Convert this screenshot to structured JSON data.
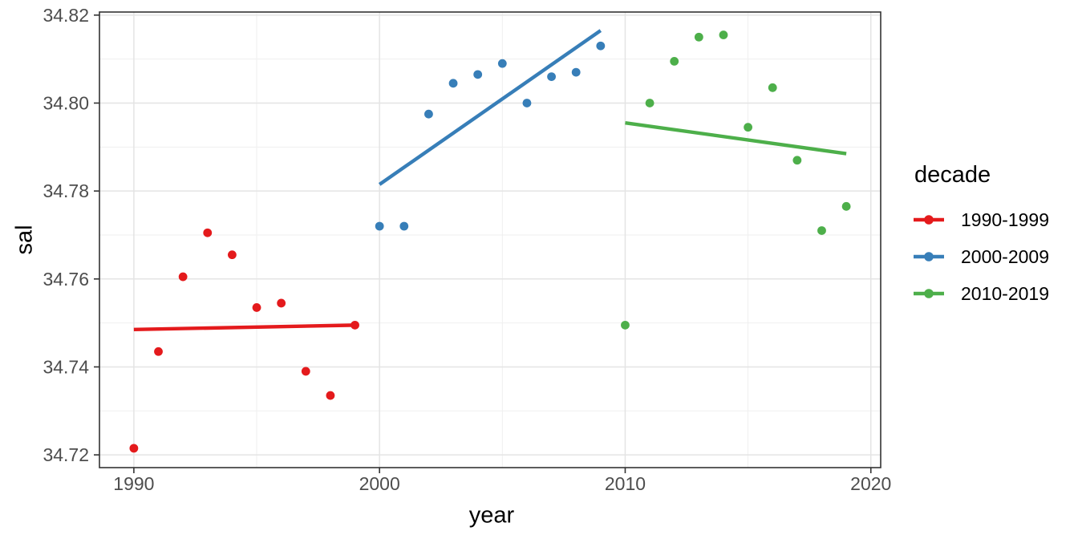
{
  "chart_data": {
    "type": "scatter",
    "title": "",
    "xlabel": "year",
    "ylabel": "sal",
    "legend_title": "decade",
    "legend_position": "right",
    "grid": true,
    "panel_theme": "white background, light gray major and minor gridlines, dark panel border (ggplot theme_bw style)",
    "xlim": [
      1988.6,
      2020.4
    ],
    "ylim": [
      34.7171,
      34.8207
    ],
    "x_ticks": [
      1990,
      2000,
      2010,
      2020
    ],
    "x_tick_labels": [
      "1990",
      "2000",
      "2010",
      "2020"
    ],
    "x_minor_ticks": [
      1995,
      2005,
      2015
    ],
    "y_ticks": [
      34.72,
      34.74,
      34.76,
      34.78,
      34.8,
      34.82
    ],
    "y_tick_labels": [
      "34.72",
      "34.74",
      "34.76",
      "34.78",
      "34.80",
      "34.82"
    ],
    "y_minor_ticks": [
      34.73,
      34.75,
      34.77,
      34.79,
      34.81
    ],
    "colors": {
      "major_grid": "#e4e4e4",
      "minor_grid": "#efefef",
      "panel_border": "#333333",
      "tick_mark": "#333333",
      "tick_label": "#4d4d4d"
    },
    "series": [
      {
        "name": "1990-1999",
        "color": "#E41A1C",
        "x": [
          1990,
          1991,
          1992,
          1993,
          1994,
          1995,
          1996,
          1997,
          1998,
          1999
        ],
        "y": [
          34.7215,
          34.7435,
          34.7605,
          34.7705,
          34.7655,
          34.7535,
          34.7545,
          34.739,
          34.7335,
          34.7495
        ],
        "trend": {
          "x1": 1990,
          "y1": 34.7485,
          "x2": 1999,
          "y2": 34.7495
        }
      },
      {
        "name": "2000-2009",
        "color": "#377EB8",
        "x": [
          2000,
          2001,
          2002,
          2003,
          2004,
          2005,
          2006,
          2007,
          2008,
          2009
        ],
        "y": [
          34.772,
          34.772,
          34.7975,
          34.8045,
          34.8065,
          34.809,
          34.8,
          34.806,
          34.807,
          34.813
        ],
        "trend": {
          "x1": 2000,
          "y1": 34.7815,
          "x2": 2009,
          "y2": 34.8165
        }
      },
      {
        "name": "2010-2019",
        "color": "#4DAF4A",
        "x": [
          2010,
          2011,
          2012,
          2013,
          2014,
          2015,
          2016,
          2017,
          2018,
          2019
        ],
        "y": [
          34.7495,
          34.8,
          34.8095,
          34.815,
          34.8155,
          34.7945,
          34.8035,
          34.787,
          34.771,
          34.7765
        ],
        "trend": {
          "x1": 2010,
          "y1": 34.7955,
          "x2": 2019,
          "y2": 34.7885
        }
      }
    ]
  }
}
